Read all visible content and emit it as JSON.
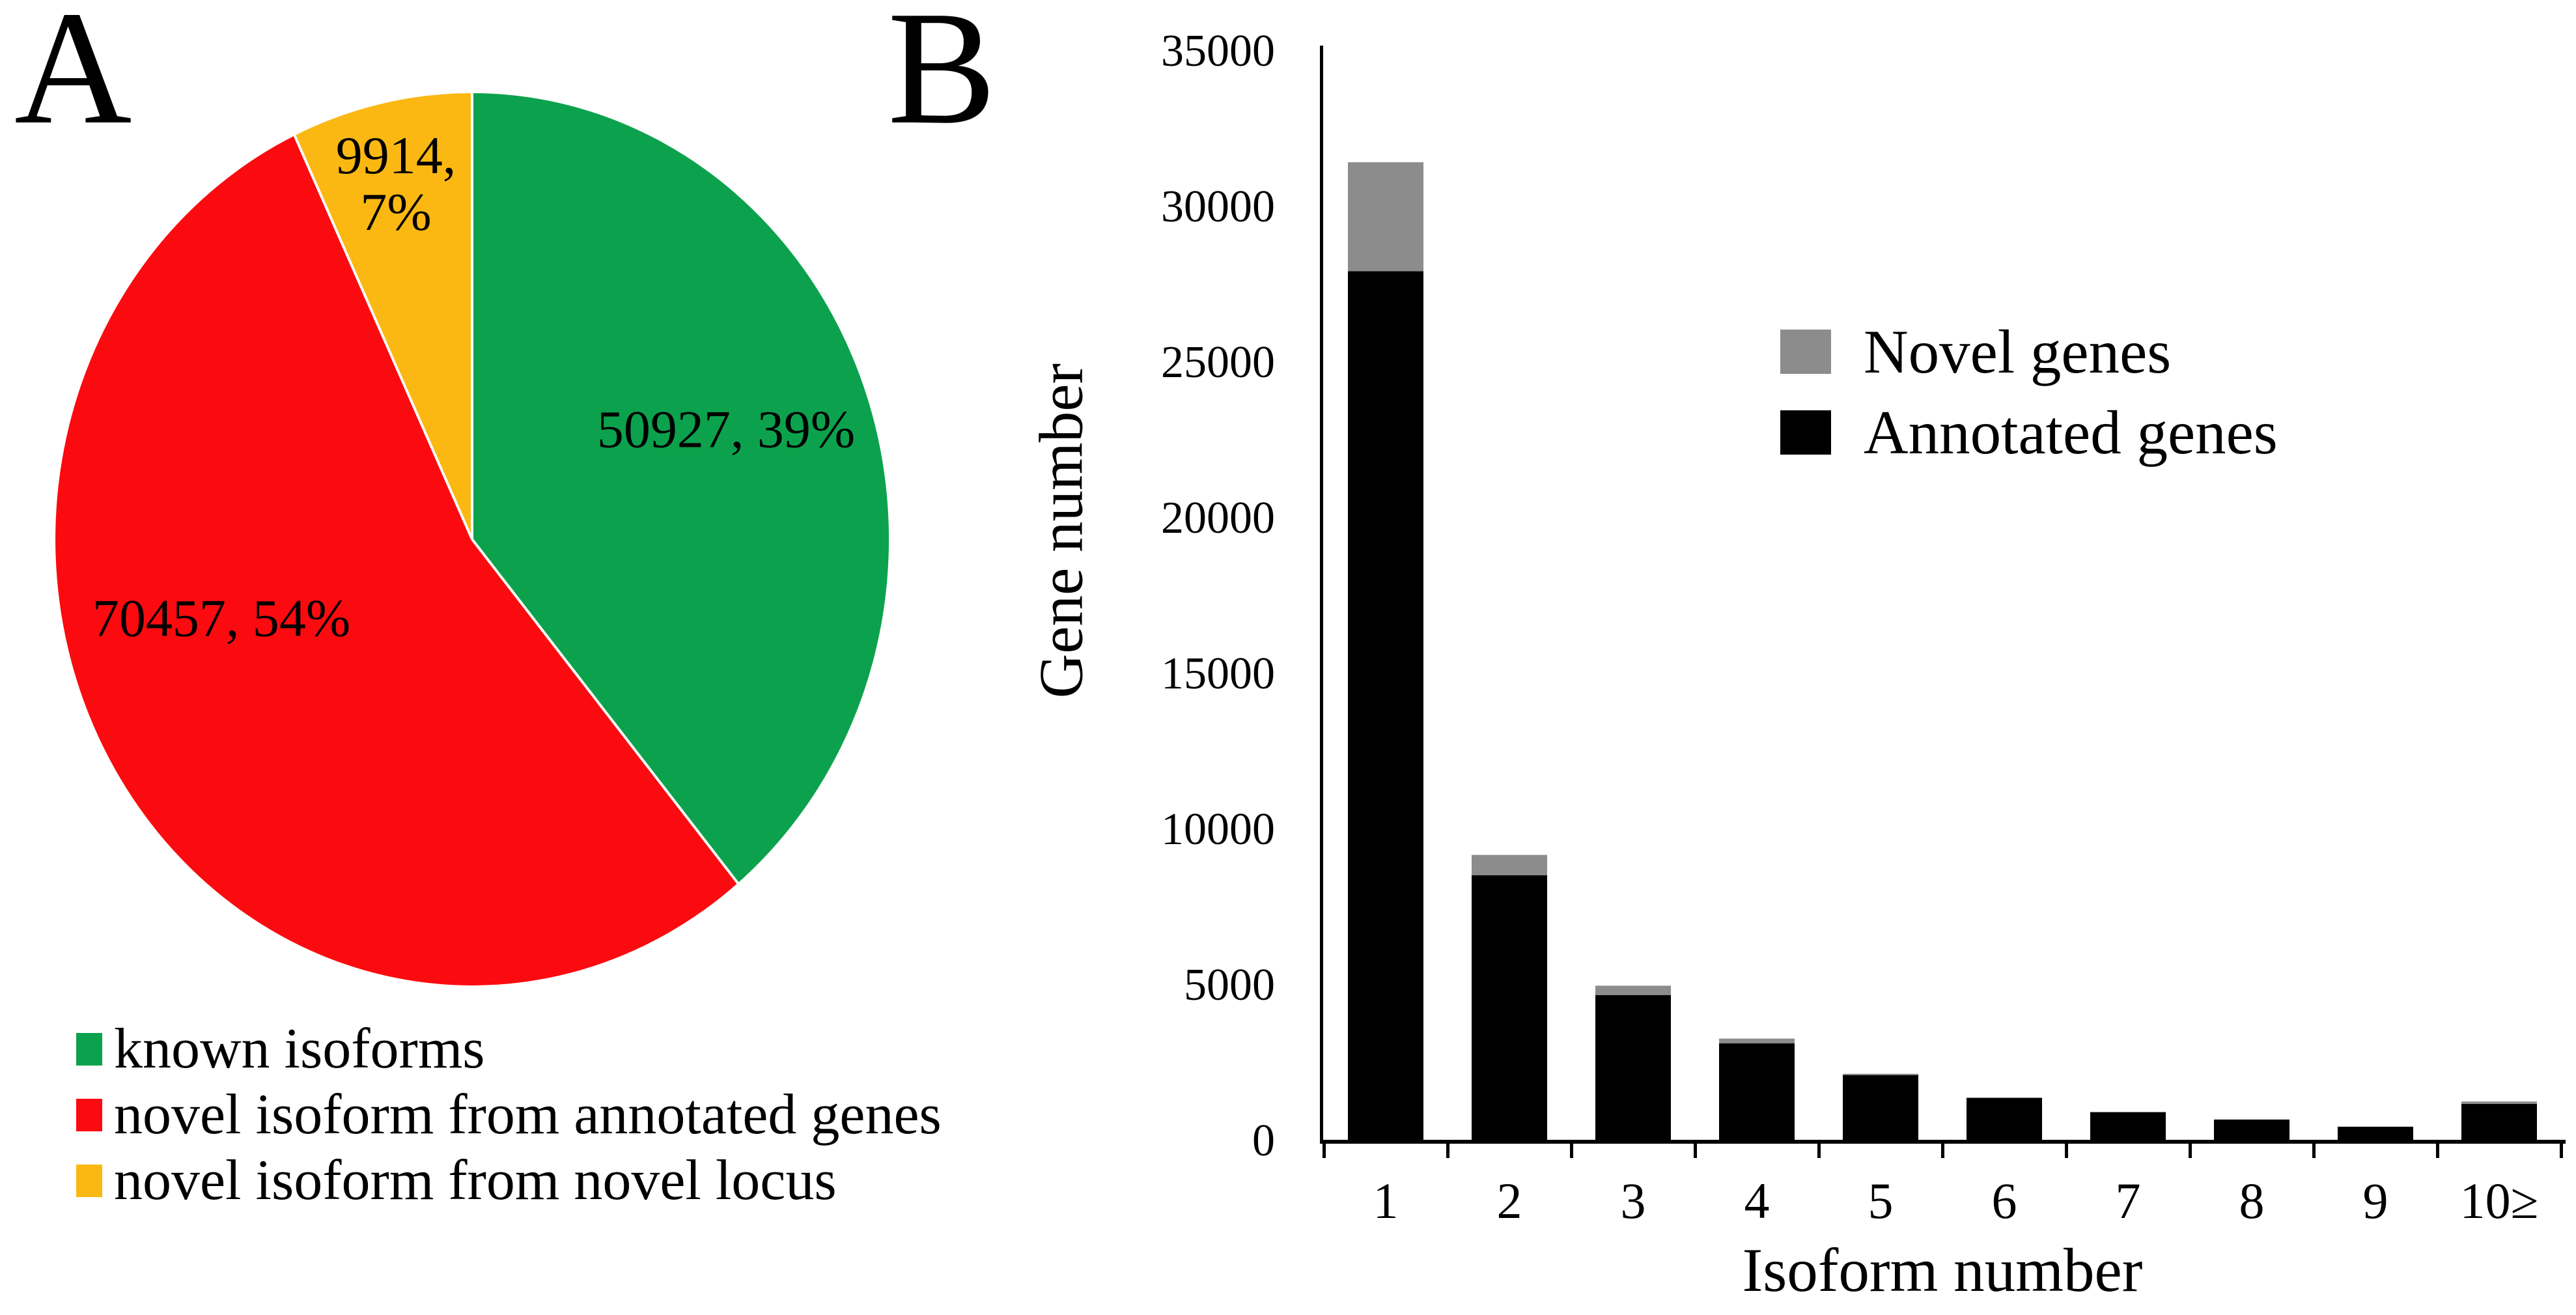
{
  "panels": {
    "a_label": "A",
    "b_label": "B"
  },
  "pie_data_labels": {
    "green": "50927, 39%",
    "red": "70457, 54%",
    "yellow_line1": "9914,",
    "yellow_line2": "7%"
  },
  "chart_data": [
    {
      "type": "pie",
      "start_angle_deg": 0,
      "direction": "clockwise",
      "legend_position": "bottom-left",
      "separator_color": "#ffffff",
      "slices": [
        {
          "id": "known-isoforms",
          "label": "known isoforms",
          "value": 50927,
          "pct": 39,
          "color": "#0CA24D",
          "data_label": "50927, 39%"
        },
        {
          "id": "novel-isoform-annotated-genes",
          "label": "novel isoform from annotated genes",
          "value": 70457,
          "pct": 54,
          "color": "#FB0B0F",
          "data_label": "70457, 54%"
        },
        {
          "id": "novel-isoform-novel-locus",
          "label": "novel isoform from novel locus",
          "value": 9914,
          "pct": 7,
          "color": "#FBB813",
          "data_label": "9914, 7%"
        }
      ]
    },
    {
      "type": "bar",
      "stacked": true,
      "categories": [
        "1",
        "2",
        "3",
        "4",
        "5",
        "6",
        "7",
        "8",
        "9",
        "10≥"
      ],
      "series": [
        {
          "name": "Annotated genes",
          "color": "#000000",
          "values": [
            27900,
            8500,
            4650,
            3100,
            2080,
            1350,
            890,
            650,
            420,
            1150
          ]
        },
        {
          "name": "Novel genes",
          "color": "#8C8C8C",
          "values": [
            3500,
            650,
            300,
            150,
            40,
            0,
            0,
            0,
            0,
            80
          ]
        }
      ],
      "xlabel": "Isoform number",
      "ylabel": "Gene number",
      "ylim": [
        0,
        35000
      ],
      "ytick_step": 5000,
      "yticks": [
        "0",
        "5000",
        "10000",
        "15000",
        "20000",
        "25000",
        "30000",
        "35000"
      ],
      "grid": false,
      "legend_position": "upper-right",
      "legend_items": [
        {
          "label": "Novel genes",
          "color": "#8C8C8C"
        },
        {
          "label": "Annotated genes",
          "color": "#000000"
        }
      ]
    }
  ]
}
